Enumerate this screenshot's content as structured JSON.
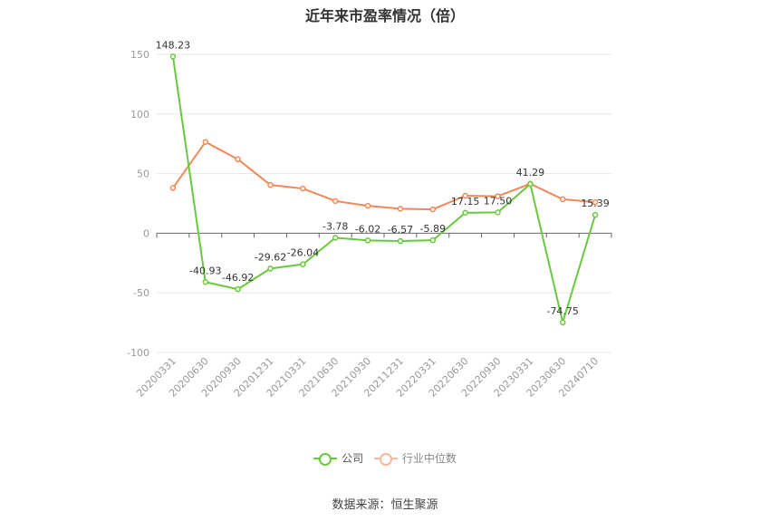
{
  "chart_data": {
    "type": "line",
    "title": "近年来市盈率情况（倍）",
    "categories": [
      "20200331",
      "20200630",
      "20200930",
      "20201231",
      "20210331",
      "20210630",
      "20210930",
      "20211231",
      "20220331",
      "20220630",
      "20220930",
      "20230331",
      "20230630",
      "20240710"
    ],
    "series": [
      {
        "name": "公司",
        "color": "#6ac83d",
        "values": [
          148.23,
          -40.93,
          -46.92,
          -29.62,
          -26.04,
          -3.78,
          -6.02,
          -6.57,
          -5.89,
          17.15,
          17.5,
          41.29,
          -74.75,
          15.39
        ],
        "data_labels": [
          "148.23",
          "-40.93",
          "-46.92",
          "-29.62",
          "-26.04",
          "-3.78",
          "-6.02",
          "-6.57",
          "-5.89",
          "17.15",
          "17.50",
          "41.29",
          "-74.75",
          "15.39"
        ]
      },
      {
        "name": "行业中位数",
        "color": "#f0885a",
        "values": [
          38,
          76.5,
          62,
          40.5,
          37.5,
          27,
          23,
          20.5,
          20,
          31.5,
          31,
          41.5,
          28.5,
          26
        ]
      }
    ],
    "ylim": [
      -100,
      150
    ],
    "yticks": [
      -100,
      -50,
      0,
      50,
      100,
      150
    ],
    "grid": true,
    "legend_position": "bottom"
  },
  "source": "数据来源：恒生聚源"
}
